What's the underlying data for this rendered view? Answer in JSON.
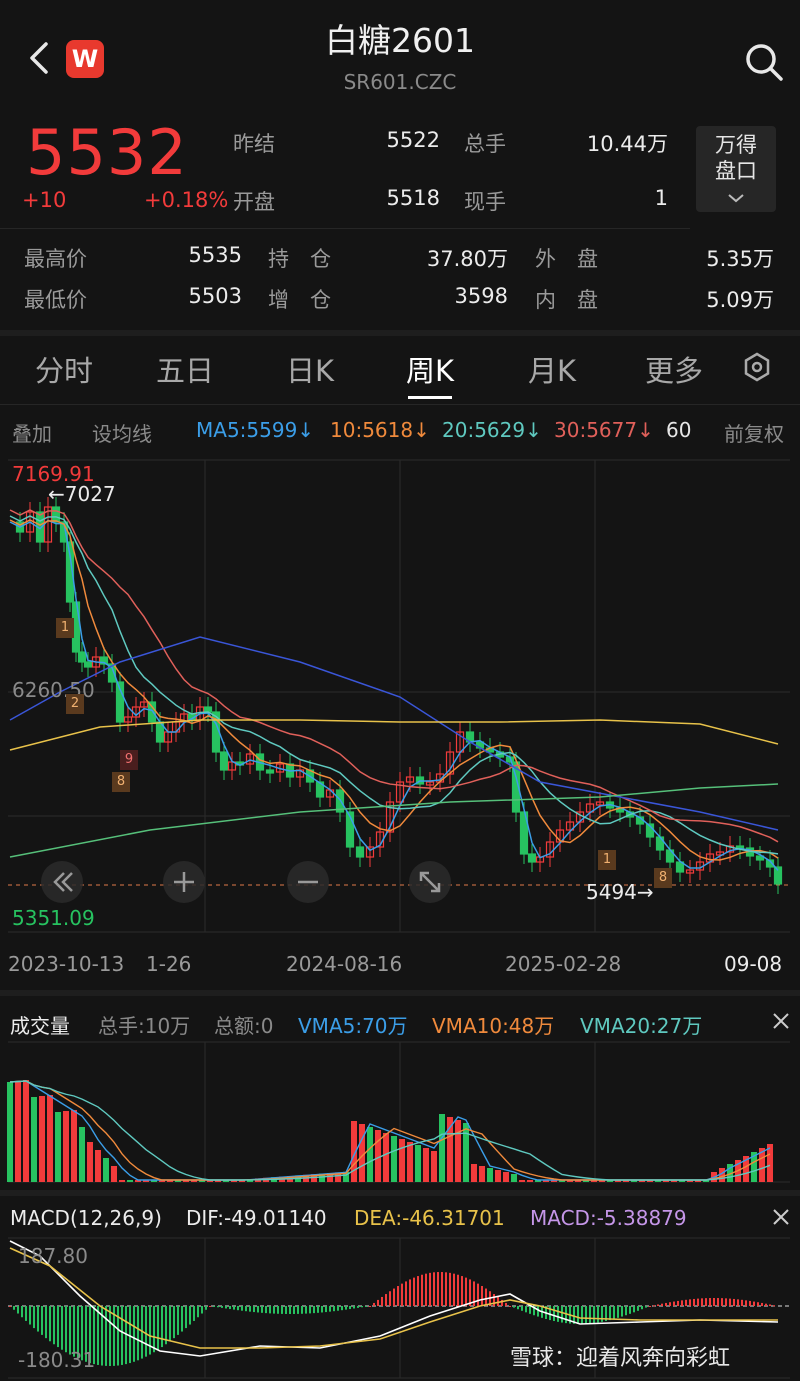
{
  "header": {
    "title": "白糖2601",
    "code": "SR601.CZC",
    "logo_text": "W"
  },
  "quote": {
    "price": "5532",
    "change": "+10",
    "change_pct": "+0.18%",
    "row1": [
      {
        "label": "昨结",
        "value": "5522"
      },
      {
        "label": "总手",
        "value": "10.44万"
      }
    ],
    "row2": [
      {
        "label": "开盘",
        "value": "5518"
      },
      {
        "label": "现手",
        "value": "1"
      }
    ],
    "row3": [
      {
        "label": "最高价",
        "value": "5535"
      },
      {
        "label": "持　仓",
        "value": "37.80万"
      },
      {
        "label": "外　盘",
        "value": "5.35万"
      }
    ],
    "row4": [
      {
        "label": "最低价",
        "value": "5503"
      },
      {
        "label": "增　仓",
        "value": "3598"
      },
      {
        "label": "内　盘",
        "value": "5.09万"
      }
    ],
    "wind_button": {
      "line1": "万得",
      "line2": "盘口"
    }
  },
  "tabs": [
    "分时",
    "五日",
    "日K",
    "周K",
    "月K",
    "更多"
  ],
  "active_tab": "周K",
  "ma_row": {
    "overlay": "叠加",
    "set_ma": "设均线",
    "ma5": "MA5:5599↓",
    "ma10": "10:5618↓",
    "ma20": "20:5629↓",
    "ma30": "30:5677↓",
    "ma60": "60",
    "adjust": "前复权"
  },
  "kline": {
    "top_label": "7169.91",
    "mid_label": "6260.50",
    "bottom_label": "5351.09",
    "high_marker": "←7027",
    "low_marker": "5494→",
    "dates": [
      "2023-10-13",
      "1-26",
      "2024-08-16",
      "2025-02-28",
      "09-08"
    ],
    "badges": [
      "1",
      "2",
      "9",
      "8",
      "1",
      "8"
    ]
  },
  "volume": {
    "title": "成交量",
    "total_hands": "总手:10万",
    "total_amount": "总额:0",
    "vma5": "VMA5:70万",
    "vma10": "VMA10:48万",
    "vma20": "VMA20:27万"
  },
  "macd": {
    "title": "MACD(12,26,9)",
    "dif": "DIF:-49.01140",
    "dea": "DEA:-46.31701",
    "macd": "MACD:-5.38879",
    "top_label": "187.80",
    "bottom_label": "-180.31"
  },
  "watermark": "雪球：迎着风奔向彩虹",
  "colors": {
    "up": "#f23b3b",
    "down": "#27c260",
    "ma5": "#3b9ee8",
    "ma10": "#f08a3c",
    "ma20": "#5fc9c0",
    "ma30": "#e0605a",
    "ma60": "#3a56d8",
    "ma120": "#e8c24a",
    "ma250": "#56c07a"
  }
}
